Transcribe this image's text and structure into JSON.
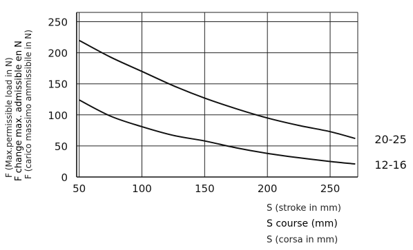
{
  "chart_data": {
    "type": "line",
    "x_ticks": [
      50,
      100,
      150,
      200,
      250
    ],
    "y_ticks": [
      0,
      50,
      100,
      150,
      200,
      250
    ],
    "xlim": [
      48,
      272
    ],
    "ylim": [
      0,
      265
    ],
    "grid": true,
    "xlabel_lines": [
      "S (stroke in mm)",
      "S course (mm)",
      "S (corsa in mm)"
    ],
    "ylabel_lines": [
      "F (Max.permissible load in N)",
      "F change max. admissible en N",
      "F (carico massimo ammissibile in N)"
    ],
    "series": [
      {
        "name": "20-25",
        "x": [
          50,
          75,
          100,
          125,
          150,
          175,
          200,
          225,
          250,
          270
        ],
        "y": [
          220,
          193,
          170,
          147,
          127,
          110,
          95,
          83,
          73,
          62
        ]
      },
      {
        "name": "12-16",
        "x": [
          50,
          75,
          100,
          125,
          150,
          175,
          200,
          225,
          250,
          270
        ],
        "y": [
          124,
          98,
          81,
          67,
          58,
          47,
          38,
          31,
          25,
          21
        ]
      }
    ]
  }
}
